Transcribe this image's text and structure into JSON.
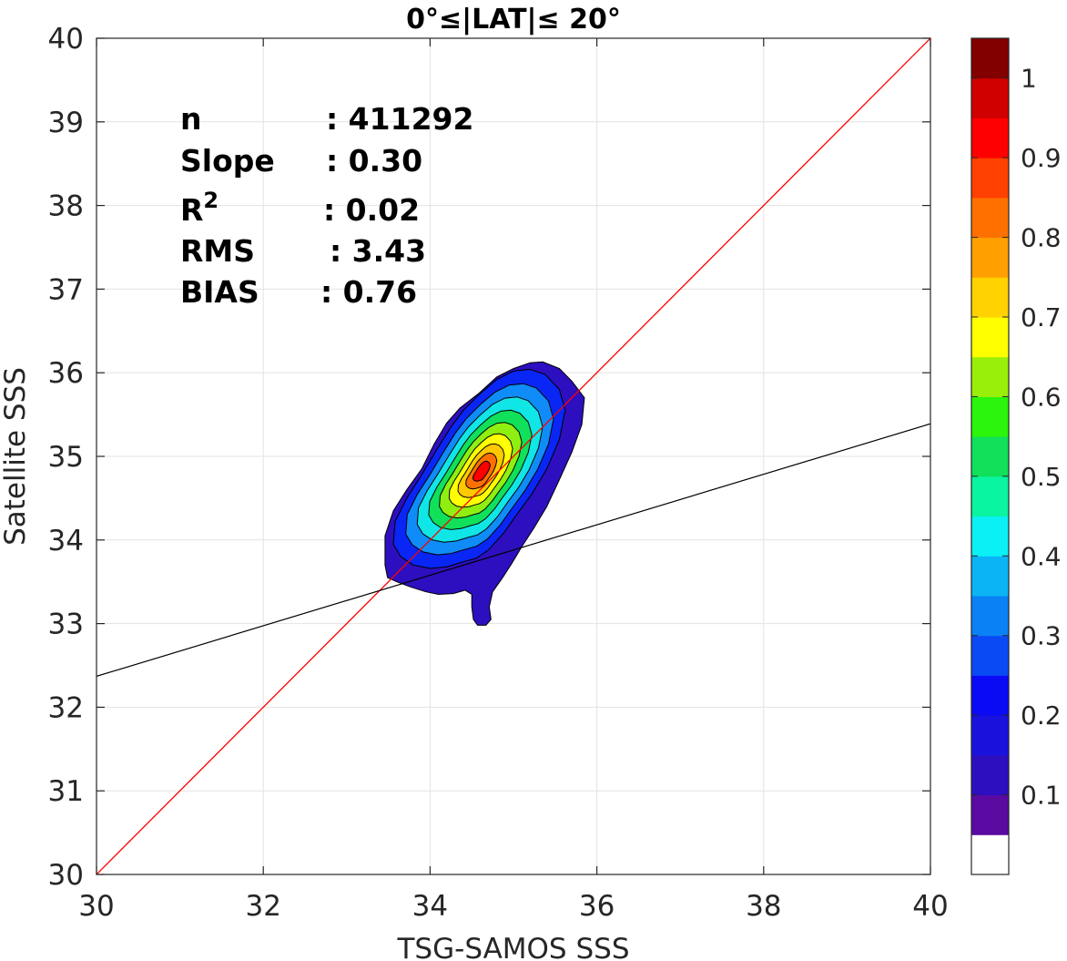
{
  "chart_data": {
    "type": "contour-density-scatter",
    "title": "0°≤|LAT|≤ 20°",
    "xlabel": "TSG-SAMOS SSS",
    "ylabel": "Satellite SSS",
    "xlim": [
      30,
      40
    ],
    "ylim": [
      30,
      40
    ],
    "xticks": [
      "30",
      "32",
      "34",
      "36",
      "38",
      "40"
    ],
    "yticks": [
      "30",
      "31",
      "32",
      "33",
      "34",
      "35",
      "36",
      "37",
      "38",
      "39",
      "40"
    ],
    "grid": true,
    "stats": [
      {
        "label": "n",
        "value": ": 411292"
      },
      {
        "label": "Slope",
        "value": ": 0.30"
      },
      {
        "label": "R",
        "sup": "2",
        "value": ": 0.02"
      },
      {
        "label": "RMS",
        "value": ": 3.43"
      },
      {
        "label": "BIAS",
        "value": ": 0.76"
      }
    ],
    "one_to_one_line": {
      "x": [
        30,
        40
      ],
      "y": [
        30,
        40
      ],
      "color": "#ff0000"
    },
    "regression_line": {
      "x": [
        30,
        40
      ],
      "y": [
        32.37,
        35.39
      ],
      "color": "#000000"
    },
    "density_peak": {
      "x": 34.58,
      "y": 34.72
    },
    "contour_levels": [
      0.05,
      0.1,
      0.2,
      0.3,
      0.4,
      0.5,
      0.6,
      0.7,
      0.8,
      0.9
    ],
    "contour_fills": [
      "#2d0fbf",
      "#0a26f5",
      "#0f8cf7",
      "#10e6e6",
      "#10e05a",
      "#8fef10",
      "#ffff00",
      "#ffc800",
      "#ff7000",
      "#ff0000"
    ],
    "colorbar": {
      "colors": [
        "#ffffff",
        "#5a0aa0",
        "#2d0fbf",
        "#1a12dc",
        "#0a0af5",
        "#0a4af5",
        "#0a82f5",
        "#0ab4f5",
        "#0af0f5",
        "#0af5a0",
        "#10e05a",
        "#2af50a",
        "#9aef0a",
        "#ffff00",
        "#ffd200",
        "#ffa000",
        "#ff7000",
        "#ff4000",
        "#ff0000",
        "#d00000",
        "#820000"
      ],
      "tick_labels": [
        "0.1",
        "0.2",
        "0.3",
        "0.4",
        "0.5",
        "0.6",
        "0.7",
        "0.8",
        "0.9",
        "1"
      ],
      "tick_values": [
        0.1,
        0.2,
        0.3,
        0.4,
        0.5,
        0.6,
        0.7,
        0.8,
        0.9,
        1.0
      ]
    }
  }
}
